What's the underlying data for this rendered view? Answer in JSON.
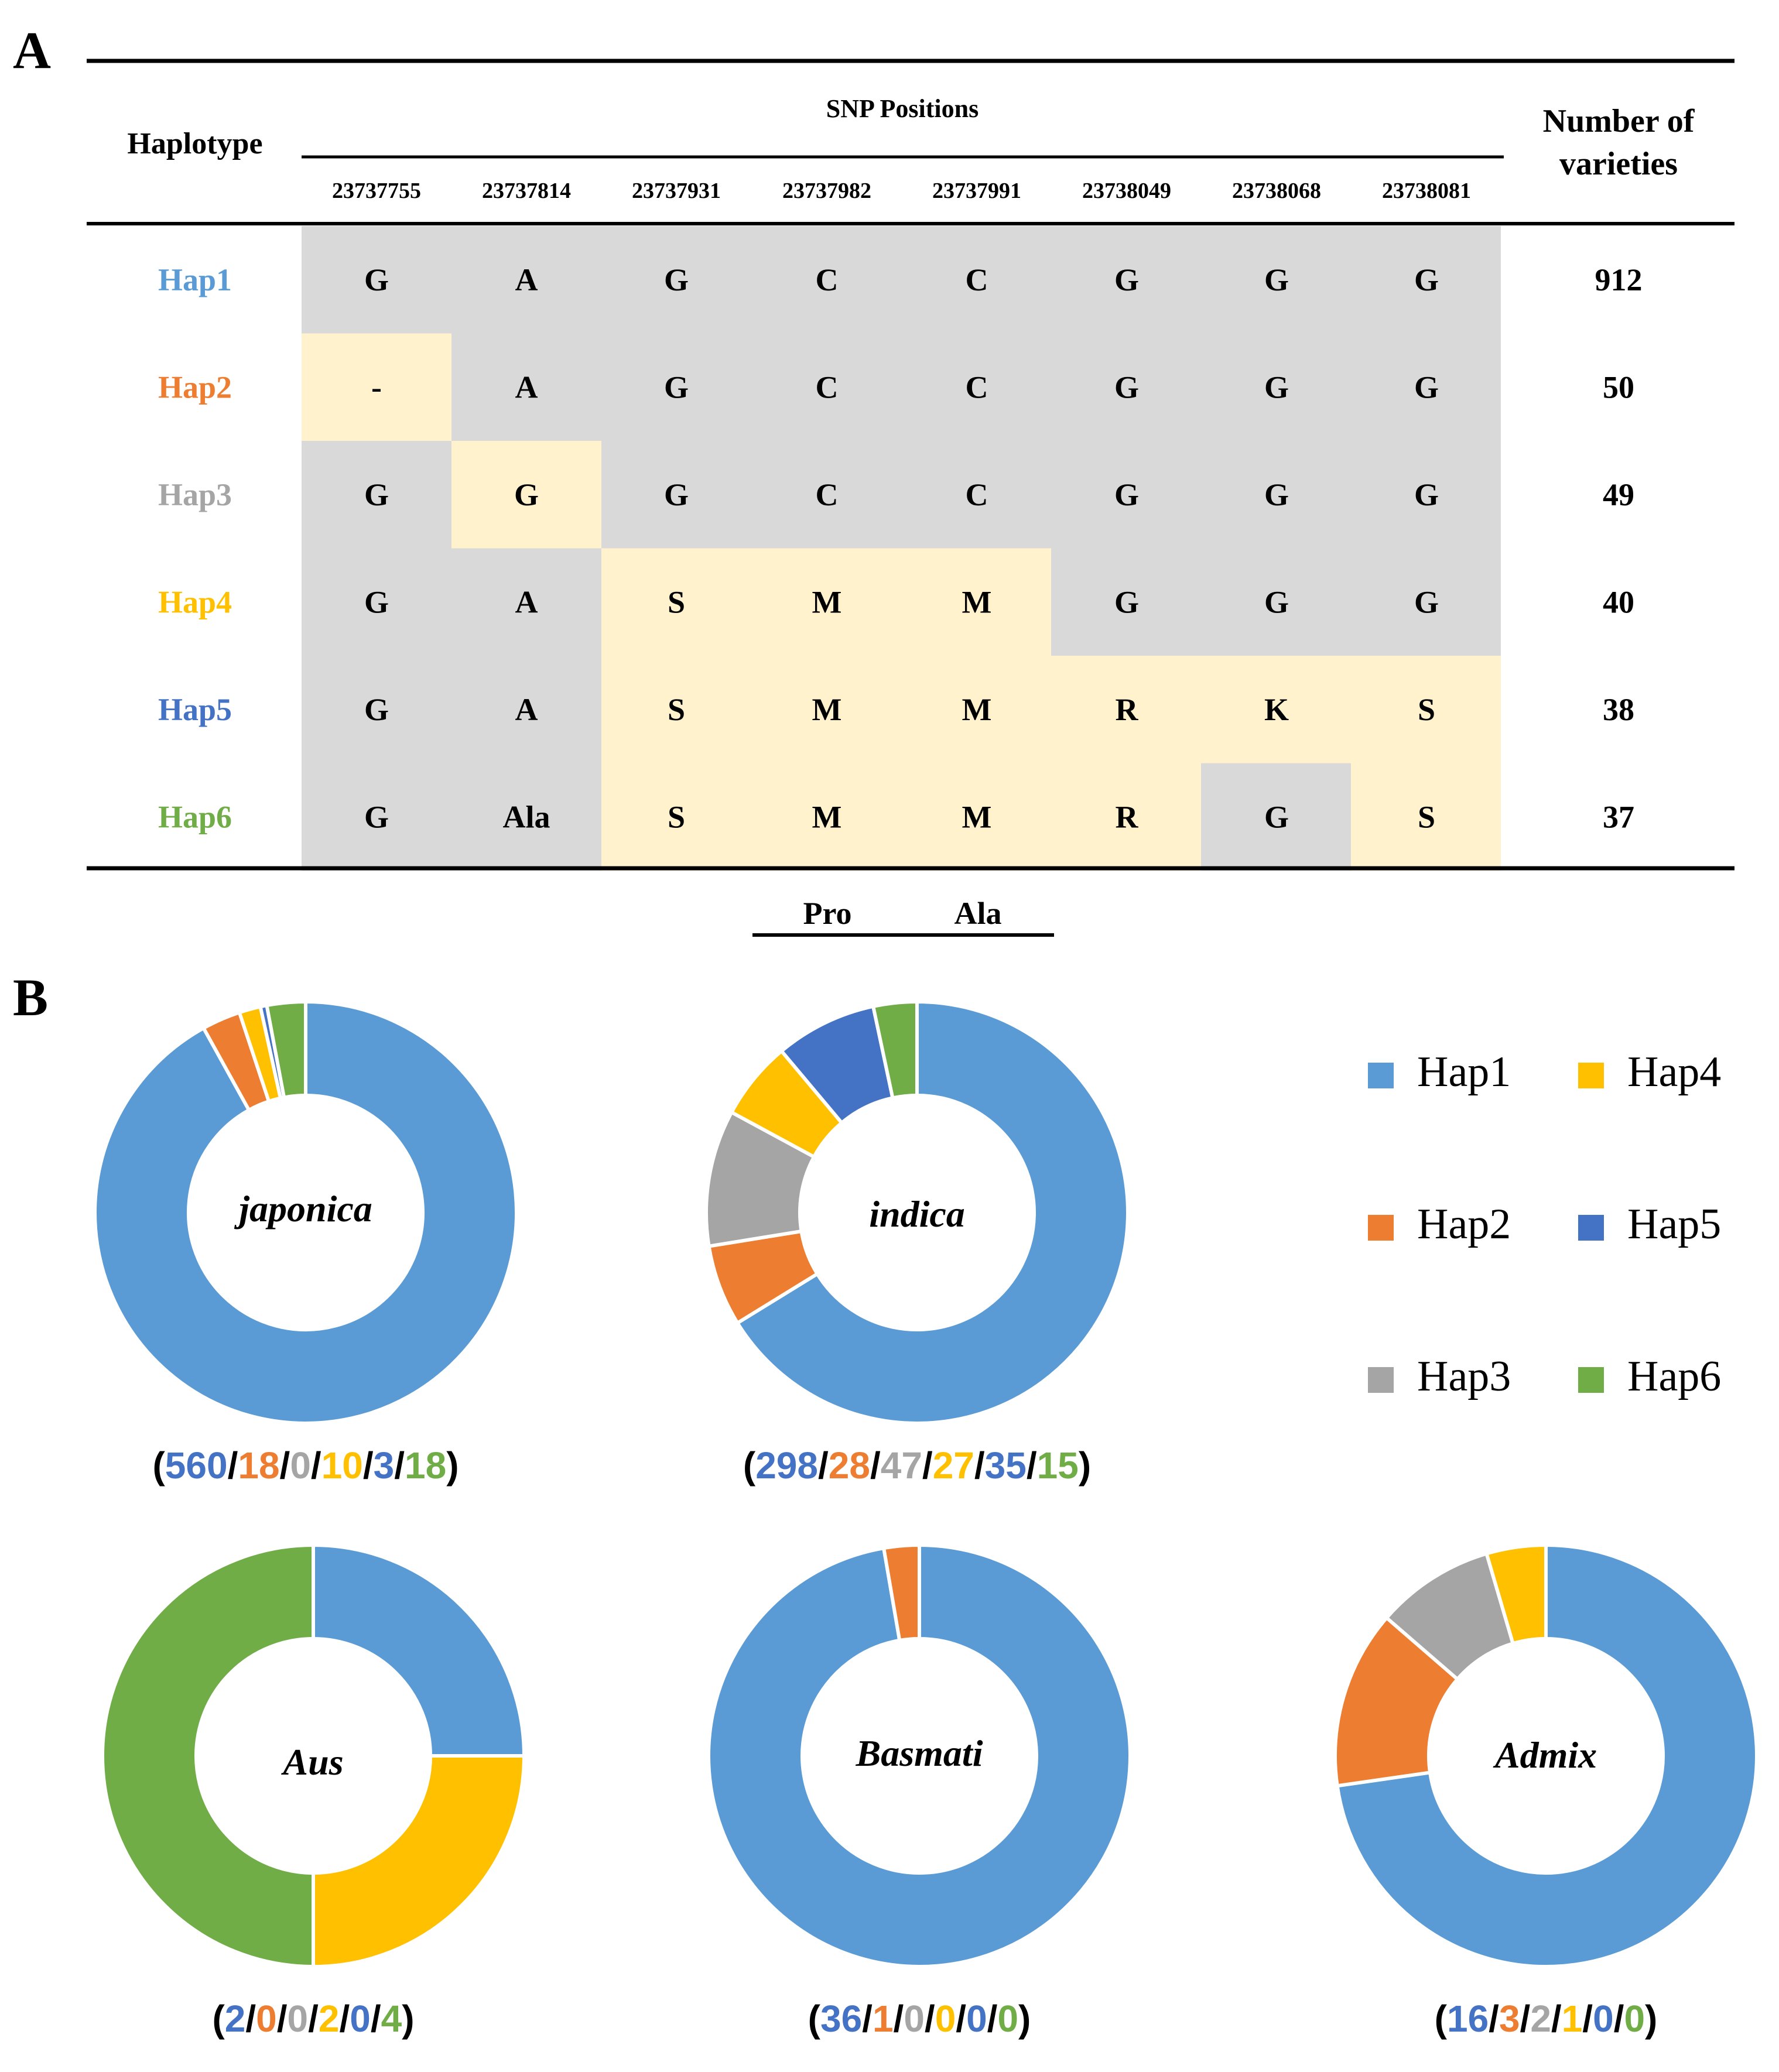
{
  "panel_a": {
    "label": "A",
    "header": {
      "haplotype": "Haplotype",
      "snp_positions": "SNP Positions",
      "number_of_varieties_line1": "Number of",
      "number_of_varieties_line2": "varieties"
    },
    "positions": [
      "23737755",
      "23737814",
      "23737931",
      "23737982",
      "23737991",
      "23738049",
      "23738068",
      "23738081"
    ],
    "rows": [
      {
        "name": "Hap1",
        "color": "#5B9BD5",
        "cells": [
          "G",
          "A",
          "G",
          "C",
          "C",
          "G",
          "G",
          "G"
        ],
        "variant": [
          0,
          0,
          0,
          0,
          0,
          0,
          0,
          0
        ],
        "count": "912"
      },
      {
        "name": "Hap2",
        "color": "#ED7D31",
        "cells": [
          "-",
          "A",
          "G",
          "C",
          "C",
          "G",
          "G",
          "G"
        ],
        "variant": [
          1,
          0,
          0,
          0,
          0,
          0,
          0,
          0
        ],
        "count": "50"
      },
      {
        "name": "Hap3",
        "color": "#A5A5A5",
        "cells": [
          "G",
          "G",
          "G",
          "C",
          "C",
          "G",
          "G",
          "G"
        ],
        "variant": [
          0,
          1,
          0,
          0,
          0,
          0,
          0,
          0
        ],
        "count": "49"
      },
      {
        "name": "Hap4",
        "color": "#FFC000",
        "cells": [
          "G",
          "A",
          "S",
          "M",
          "M",
          "G",
          "G",
          "G"
        ],
        "variant": [
          0,
          0,
          1,
          1,
          1,
          0,
          0,
          0
        ],
        "count": "40"
      },
      {
        "name": "Hap5",
        "color": "#4472C4",
        "cells": [
          "G",
          "A",
          "S",
          "M",
          "M",
          "R",
          "K",
          "S"
        ],
        "variant": [
          0,
          0,
          1,
          1,
          1,
          1,
          1,
          1
        ],
        "count": "38"
      },
      {
        "name": "Hap6",
        "color": "#70AD47",
        "cells": [
          "G",
          "Ala",
          "S",
          "M",
          "M",
          "R",
          "G",
          "S"
        ],
        "variant": [
          0,
          0,
          1,
          1,
          1,
          1,
          0,
          1
        ],
        "count": "37"
      }
    ],
    "under_labels": [
      "Pro",
      "Ala"
    ],
    "colors": {
      "reference": "#D9D9D9",
      "variant": "#FFF2CC"
    }
  },
  "panel_b": {
    "label": "B",
    "legend": [
      "Hap1",
      "Hap4",
      "Hap2",
      "Hap5",
      "Hap3",
      "Hap6"
    ]
  },
  "chart_data": [
    {
      "type": "pie",
      "title": "japonica",
      "categories": [
        "Hap1",
        "Hap2",
        "Hap3",
        "Hap4",
        "Hap5",
        "Hap6"
      ],
      "values": [
        560,
        18,
        0,
        10,
        3,
        18
      ],
      "count_labels": [
        "560",
        "18",
        "0",
        "10",
        "3",
        "18"
      ]
    },
    {
      "type": "pie",
      "title": "indica",
      "categories": [
        "Hap1",
        "Hap2",
        "Hap3",
        "Hap4",
        "Hap5",
        "Hap6"
      ],
      "values": [
        298,
        28,
        47,
        27,
        35,
        15
      ],
      "count_labels": [
        "298",
        "28",
        "47",
        "27",
        "35",
        "15"
      ]
    },
    {
      "type": "pie",
      "title": "Aus",
      "categories": [
        "Hap1",
        "Hap2",
        "Hap3",
        "Hap4",
        "Hap5",
        "Hap6"
      ],
      "values": [
        2,
        0,
        0,
        2,
        0,
        4
      ],
      "count_labels": [
        "2",
        "0",
        "0",
        "2",
        "0",
        "4"
      ]
    },
    {
      "type": "pie",
      "title": "Basmati",
      "categories": [
        "Hap1",
        "Hap2",
        "Hap3",
        "Hap4",
        "Hap5",
        "Hap6"
      ],
      "values": [
        36,
        1,
        0,
        0,
        0,
        0
      ],
      "count_labels": [
        "36",
        "1",
        "0",
        "0",
        "0",
        "0"
      ]
    },
    {
      "type": "pie",
      "title": "Admix",
      "categories": [
        "Hap1",
        "Hap2",
        "Hap3",
        "Hap4",
        "Hap5",
        "Hap6"
      ],
      "values": [
        16,
        3,
        2,
        1,
        0,
        0
      ],
      "count_labels": [
        "16",
        "3",
        "2",
        "1",
        "0",
        "0"
      ]
    }
  ],
  "series_colors": {
    "Hap1": "#5B9BD5",
    "Hap2": "#ED7D31",
    "Hap3": "#A5A5A5",
    "Hap4": "#FFC000",
    "Hap5": "#4472C4",
    "Hap6": "#70AD47"
  },
  "count_label_colors": [
    "#4472C4",
    "#ED7D31",
    "#A5A5A5",
    "#FFC000",
    "#4472C4",
    "#70AD47"
  ]
}
